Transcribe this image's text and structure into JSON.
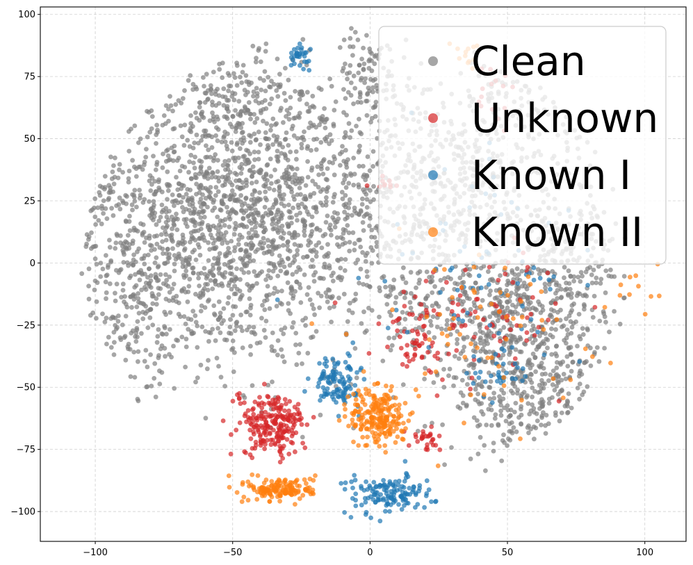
{
  "chart_data": {
    "type": "scatter",
    "title": "",
    "xlabel": "",
    "ylabel": "",
    "xlim": [
      -120,
      115
    ],
    "ylim": [
      -112,
      103
    ],
    "xticks": [
      -100,
      -50,
      0,
      50,
      100
    ],
    "yticks": [
      -100,
      -75,
      -50,
      -25,
      0,
      25,
      50,
      75,
      100
    ],
    "grid": true,
    "legend_position": "top-right",
    "series": [
      {
        "name": "Clean",
        "color": "#808080",
        "clusters": [
          {
            "cx": -60,
            "cy": 20,
            "sx": 26,
            "sy": 30,
            "n": 1500
          },
          {
            "cx": -20,
            "cy": 20,
            "sx": 22,
            "sy": 28,
            "n": 600
          },
          {
            "cx": 0,
            "cy": 75,
            "sx": 6,
            "sy": 10,
            "n": 90
          },
          {
            "cx": 30,
            "cy": 30,
            "sx": 22,
            "sy": 25,
            "n": 500
          },
          {
            "cx": 55,
            "cy": -45,
            "sx": 14,
            "sy": 20,
            "n": 520
          },
          {
            "cx": 40,
            "cy": -20,
            "sx": 22,
            "sy": 12,
            "n": 260
          },
          {
            "cx": 75,
            "cy": 0,
            "sx": 12,
            "sy": 22,
            "n": 220
          },
          {
            "cx": -85,
            "cy": -20,
            "sx": 10,
            "sy": 15,
            "n": 140
          },
          {
            "cx": -45,
            "cy": 70,
            "sx": 10,
            "sy": 8,
            "n": 80
          },
          {
            "cx": 60,
            "cy": 60,
            "sx": 12,
            "sy": 12,
            "n": 90
          }
        ]
      },
      {
        "name": "Unknown",
        "color": "#d62728",
        "clusters": [
          {
            "cx": -35,
            "cy": -65,
            "sx": 6,
            "sy": 6,
            "n": 220
          },
          {
            "cx": 17,
            "cy": -32,
            "sx": 4,
            "sy": 6,
            "n": 40
          },
          {
            "cx": 20,
            "cy": -71,
            "sx": 3,
            "sy": 2,
            "n": 28
          },
          {
            "cx": 40,
            "cy": -20,
            "sx": 18,
            "sy": 12,
            "n": 90
          },
          {
            "cx": 6,
            "cy": 32,
            "sx": 3,
            "sy": 2,
            "n": 10
          },
          {
            "cx": 45,
            "cy": 70,
            "sx": 6,
            "sy": 6,
            "n": 15
          },
          {
            "cx": -47,
            "cy": -53,
            "sx": 1.5,
            "sy": 1.5,
            "n": 5
          }
        ]
      },
      {
        "name": "Known I",
        "color": "#1f77b4",
        "clusters": [
          {
            "cx": -26,
            "cy": 83,
            "sx": 2,
            "sy": 2,
            "n": 30
          },
          {
            "cx": -12,
            "cy": -48,
            "sx": 4,
            "sy": 5,
            "n": 110
          },
          {
            "cx": 7,
            "cy": -93,
            "sx": 8,
            "sy": 4,
            "n": 140
          },
          {
            "cx": 45,
            "cy": -45,
            "sx": 5,
            "sy": 4,
            "n": 30
          },
          {
            "cx": 35,
            "cy": -15,
            "sx": 22,
            "sy": 14,
            "n": 50
          },
          {
            "cx": 45,
            "cy": 20,
            "sx": 12,
            "sy": 20,
            "n": 25
          }
        ]
      },
      {
        "name": "Known II",
        "color": "#ff7f0e",
        "clusters": [
          {
            "cx": -32,
            "cy": -91,
            "sx": 6,
            "sy": 2.5,
            "n": 150
          },
          {
            "cx": 3,
            "cy": -62,
            "sx": 5,
            "sy": 6,
            "n": 220
          },
          {
            "cx": 40,
            "cy": -25,
            "sx": 22,
            "sy": 16,
            "n": 70
          },
          {
            "cx": 35,
            "cy": 85,
            "sx": 3,
            "sy": 3,
            "n": 12
          },
          {
            "cx": 95,
            "cy": -5,
            "sx": 5,
            "sy": 5,
            "n": 6
          }
        ]
      }
    ]
  }
}
